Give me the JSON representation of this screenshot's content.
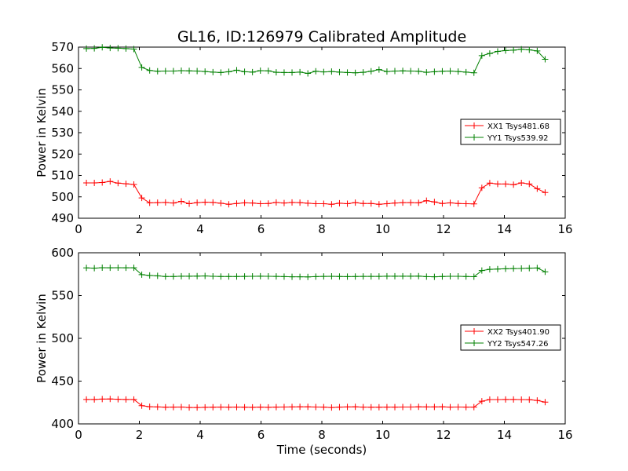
{
  "figure": {
    "title": "GL16, ID:126979 Calibrated Amplitude",
    "xlabel": "Time (seconds)"
  },
  "colors": {
    "XX": "#ff0000",
    "YY": "#008000"
  },
  "chart_data": [
    {
      "type": "line",
      "ylabel": "Power in Kelvin",
      "xlim": [
        0,
        16
      ],
      "ylim": [
        490,
        570
      ],
      "xticks": [
        0,
        2,
        4,
        6,
        8,
        10,
        12,
        14,
        16
      ],
      "yticks": [
        490,
        500,
        510,
        520,
        530,
        540,
        550,
        560,
        570
      ],
      "legend_placement": "center-right",
      "x": [
        0.26,
        0.52,
        0.78,
        1.04,
        1.3,
        1.56,
        1.82,
        2.08,
        2.34,
        2.6,
        2.86,
        3.12,
        3.38,
        3.64,
        3.9,
        4.16,
        4.42,
        4.68,
        4.94,
        5.2,
        5.46,
        5.72,
        5.98,
        6.24,
        6.5,
        6.76,
        7.02,
        7.28,
        7.54,
        7.8,
        8.06,
        8.32,
        8.58,
        8.84,
        9.1,
        9.36,
        9.62,
        9.88,
        10.14,
        10.4,
        10.66,
        10.92,
        11.18,
        11.44,
        11.7,
        11.96,
        12.22,
        12.48,
        12.74,
        13.0,
        13.26,
        13.52,
        13.78,
        14.04,
        14.3,
        14.56,
        14.82,
        15.08,
        15.34
      ],
      "series": [
        {
          "name": "XX1 Tsys481.68",
          "values": [
            506.5,
            506.5,
            506.7,
            507.2,
            506.4,
            506.1,
            505.8,
            499.5,
            497.2,
            497.3,
            497.4,
            497.1,
            497.9,
            496.8,
            497.3,
            497.5,
            497.4,
            497.0,
            496.5,
            496.9,
            497.2,
            497.1,
            496.8,
            496.9,
            497.4,
            497.1,
            497.4,
            497.3,
            497.0,
            496.8,
            496.8,
            496.5,
            497.0,
            496.8,
            497.3,
            496.9,
            496.9,
            496.5,
            496.8,
            497.1,
            497.3,
            497.3,
            497.2,
            498.2,
            497.6,
            496.9,
            497.2,
            496.9,
            496.8,
            496.7,
            504.2,
            506.4,
            506.0,
            506.0,
            505.7,
            506.5,
            506.0,
            503.8,
            502.0
          ]
        },
        {
          "name": "YY1 Tsys539.92",
          "values": [
            569.3,
            569.4,
            569.9,
            569.6,
            569.5,
            569.3,
            569.1,
            560.5,
            559.1,
            558.7,
            558.8,
            558.8,
            559.0,
            558.9,
            558.8,
            558.6,
            558.3,
            558.1,
            558.5,
            559.2,
            558.5,
            558.3,
            559.0,
            558.9,
            558.2,
            558.1,
            558.1,
            558.3,
            557.7,
            558.7,
            558.4,
            558.6,
            558.3,
            558.1,
            558.0,
            558.2,
            558.7,
            559.5,
            558.6,
            558.8,
            558.9,
            558.8,
            558.7,
            558.2,
            558.5,
            558.7,
            558.8,
            558.6,
            558.3,
            558.0,
            566.0,
            567.0,
            568.0,
            568.4,
            568.6,
            569.0,
            568.7,
            568.2,
            564.3
          ]
        }
      ]
    },
    {
      "type": "line",
      "ylabel": "Power in Kelvin",
      "xlabel": "Time (seconds)",
      "xlim": [
        0,
        16
      ],
      "ylim": [
        400,
        600
      ],
      "xticks": [
        0,
        2,
        4,
        6,
        8,
        10,
        12,
        14,
        16
      ],
      "yticks": [
        400,
        450,
        500,
        550,
        600
      ],
      "legend_placement": "center-right",
      "x": [
        0.26,
        0.52,
        0.78,
        1.04,
        1.3,
        1.56,
        1.82,
        2.08,
        2.34,
        2.6,
        2.86,
        3.12,
        3.38,
        3.64,
        3.9,
        4.16,
        4.42,
        4.68,
        4.94,
        5.2,
        5.46,
        5.72,
        5.98,
        6.24,
        6.5,
        6.76,
        7.02,
        7.28,
        7.54,
        7.8,
        8.06,
        8.32,
        8.58,
        8.84,
        9.1,
        9.36,
        9.62,
        9.88,
        10.14,
        10.4,
        10.66,
        10.92,
        11.18,
        11.44,
        11.7,
        11.96,
        12.22,
        12.48,
        12.74,
        13.0,
        13.26,
        13.52,
        13.78,
        14.04,
        14.3,
        14.56,
        14.82,
        15.08,
        15.34
      ],
      "series": [
        {
          "name": "XX2 Tsys401.90",
          "values": [
            428.5,
            428.6,
            429.0,
            429.1,
            428.8,
            428.5,
            428.6,
            421.3,
            420.1,
            419.8,
            419.5,
            419.6,
            419.7,
            419.2,
            419.1,
            419.4,
            419.5,
            419.6,
            419.5,
            419.6,
            419.5,
            419.4,
            419.6,
            419.4,
            419.6,
            419.7,
            419.8,
            419.9,
            420.0,
            419.7,
            419.6,
            419.2,
            419.6,
            419.8,
            420.0,
            419.6,
            419.5,
            419.5,
            419.6,
            419.6,
            419.7,
            419.7,
            419.9,
            419.8,
            419.8,
            419.9,
            419.6,
            419.7,
            419.6,
            419.6,
            426.5,
            428.4,
            428.4,
            428.5,
            428.5,
            428.4,
            428.3,
            427.4,
            425.5
          ]
        },
        {
          "name": "YY2 Tsys547.26",
          "values": [
            582.3,
            582.0,
            582.6,
            582.5,
            582.6,
            582.4,
            582.4,
            574.4,
            573.5,
            573.1,
            572.2,
            572.2,
            572.6,
            572.6,
            572.7,
            572.9,
            572.5,
            572.3,
            572.2,
            572.2,
            572.4,
            572.5,
            572.6,
            572.5,
            572.4,
            572.1,
            571.9,
            571.9,
            571.8,
            572.1,
            572.4,
            572.5,
            572.3,
            572.1,
            572.3,
            572.4,
            572.4,
            572.4,
            572.6,
            572.6,
            572.6,
            572.6,
            572.7,
            572.1,
            571.9,
            572.3,
            572.5,
            572.5,
            572.2,
            572.0,
            579.2,
            580.6,
            581.0,
            581.3,
            581.5,
            581.6,
            582.0,
            582.2,
            577.8
          ]
        }
      ]
    }
  ]
}
